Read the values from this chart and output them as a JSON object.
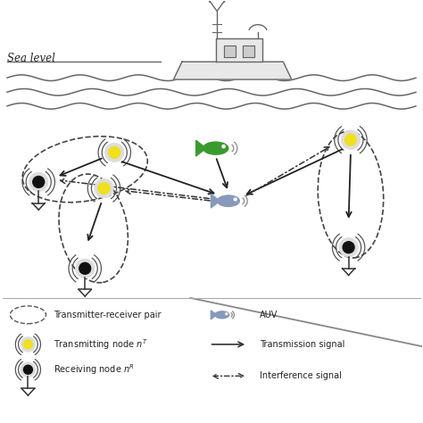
{
  "bg_color": "#ffffff",
  "wave_color": "#666666",
  "boat_fill": "#e8e8e8",
  "boat_edge": "#666666",
  "node_tx_fill": "#f0e020",
  "node_rx_fill": "#111111",
  "node_ring_color": "#555555",
  "ellipse_color": "#444444",
  "arrow_color": "#222222",
  "auv_green": "#3a9a30",
  "auv_gray": "#8899bb",
  "text_color": "#222222",
  "sea_level_text": "Sea level",
  "legend_tr_pair": "Transmitter-receiver pair",
  "legend_tx_node": "Transmitting node ",
  "legend_rx_node": "Receiving node ",
  "legend_auv": "AUV",
  "legend_tx_signal": "Transmission signal",
  "legend_int_signal": "Interference signal"
}
